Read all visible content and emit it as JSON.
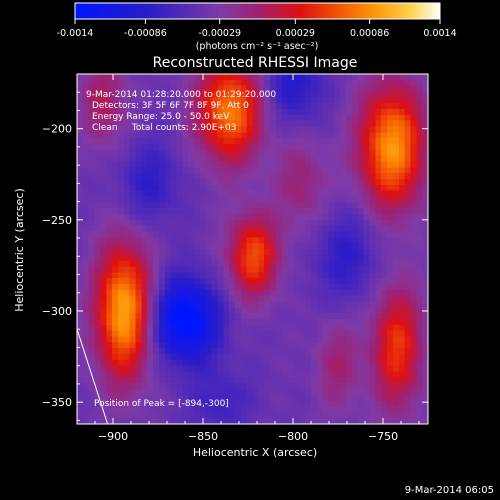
{
  "chart_data": {
    "type": "heatmap",
    "title": "Reconstructed RHESSI Image",
    "colorbar": {
      "ticks": [
        "-0.0014",
        "-0.00086",
        "-0.00029",
        "0.00029",
        "0.00086",
        "0.0014"
      ],
      "range": [
        -0.0014,
        0.0014
      ],
      "unit_label": "(photons cm⁻² s⁻¹ asec⁻²)",
      "colormap": "blue-purple-red-yellow-white"
    },
    "xlabel": "Heliocentric X (arcsec)",
    "ylabel": "Heliocentric Y (arcsec)",
    "xlim": [
      -920,
      -725
    ],
    "ylim": [
      -362,
      -170
    ],
    "xticks": [
      -900,
      -850,
      -800,
      -750
    ],
    "yticks": [
      -200,
      -250,
      -300,
      -350
    ],
    "annotations": [
      "9-Mar-2014 01:28:20.000 to 01:29:20.000",
      "Detectors: 3F 5F 6F 7F 8F 9F, Att 0",
      "Energy Range: 25.0 - 50.0 keV",
      "Clean     Total counts: 2.90E+03"
    ],
    "peak_label": "Position of Peak = [-894,-300]",
    "peak_position": [
      -894,
      -300
    ],
    "limb_line": {
      "x": [
        -920,
        -903
      ],
      "y": [
        -310,
        -362
      ]
    },
    "sources": [
      {
        "x": -894,
        "y": -300,
        "amp": 0.0014,
        "sx": 11,
        "sy": 26
      },
      {
        "x": -835,
        "y": -190,
        "amp": 0.0012,
        "sx": 13,
        "sy": 20
      },
      {
        "x": -745,
        "y": -210,
        "amp": 0.0013,
        "sx": 13,
        "sy": 24
      },
      {
        "x": -822,
        "y": -270,
        "amp": 0.001,
        "sx": 10,
        "sy": 16
      },
      {
        "x": -742,
        "y": -320,
        "amp": 0.0009,
        "sx": 10,
        "sy": 24
      },
      {
        "x": -905,
        "y": -185,
        "amp": 0.0005,
        "sx": 9,
        "sy": 18
      },
      {
        "x": -795,
        "y": -230,
        "amp": 0.0004,
        "sx": 10,
        "sy": 18
      },
      {
        "x": -775,
        "y": -330,
        "amp": 0.0004,
        "sx": 9,
        "sy": 18
      },
      {
        "x": -860,
        "y": -305,
        "amp": -0.0011,
        "sx": 13,
        "sy": 16
      },
      {
        "x": -800,
        "y": -175,
        "amp": -0.0005,
        "sx": 12,
        "sy": 16
      },
      {
        "x": -770,
        "y": -270,
        "amp": -0.0004,
        "sx": 13,
        "sy": 18
      },
      {
        "x": -880,
        "y": -230,
        "amp": -0.0004,
        "sx": 12,
        "sy": 16
      },
      {
        "x": -840,
        "y": -350,
        "amp": -0.0003,
        "sx": 12,
        "sy": 12
      }
    ]
  },
  "footer": {
    "date": "9-Mar-2014 06:05"
  }
}
